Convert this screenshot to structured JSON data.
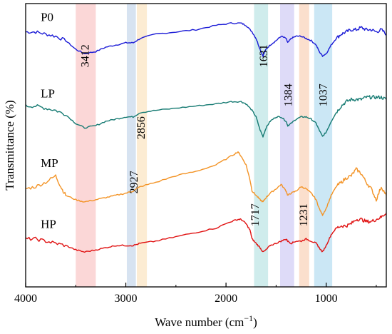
{
  "chart_data": {
    "type": "line",
    "xlabel": "Wave number (cm",
    "xlabel_sup": "−1",
    "xlabel_close": ")",
    "ylabel": "Transmittance (%)",
    "xlim": [
      4000,
      400
    ],
    "x_ticks": [
      4000,
      3000,
      2000,
      1000
    ],
    "y_ticks_shown": false,
    "grid": false,
    "legend": "none (series labelled inline)",
    "bands": [
      {
        "x_from": 3500,
        "x_to": 3300,
        "color": "#f9c9c9"
      },
      {
        "x_from": 2990,
        "x_to": 2900,
        "color": "#c9d9ec"
      },
      {
        "x_from": 2890,
        "x_to": 2790,
        "color": "#fbe6c4"
      },
      {
        "x_from": 1720,
        "x_to": 1580,
        "color": "#bfe6e6"
      },
      {
        "x_from": 1460,
        "x_to": 1320,
        "color": "#d3cff5"
      },
      {
        "x_from": 1270,
        "x_to": 1170,
        "color": "#fad4bc"
      },
      {
        "x_from": 1120,
        "x_to": 940,
        "color": "#b9dff2"
      }
    ],
    "peak_labels": [
      {
        "text": "3412",
        "x": 3412,
        "y": 70
      },
      {
        "text": "2927",
        "x": 2927,
        "y": 12
      },
      {
        "text": "2856",
        "x": 2856,
        "y": 37
      },
      {
        "text": "1631",
        "x": 1631,
        "y": 70
      },
      {
        "text": "1384",
        "x": 1384,
        "y": 52
      },
      {
        "text": "1037",
        "x": 1037,
        "y": 52
      },
      {
        "text": "1717",
        "x": 1717,
        "y": -3
      },
      {
        "text": "1231",
        "x": 1231,
        "y": -3
      }
    ],
    "y_range": [
      -36,
      94
    ],
    "series": [
      {
        "name": "P0",
        "color": "#1a1ad6",
        "label_x": 3850,
        "label_y": 86,
        "x": [
          4000,
          3900,
          3800,
          3700,
          3600,
          3500,
          3412,
          3300,
          3200,
          3100,
          3000,
          2927,
          2856,
          2700,
          2500,
          2300,
          2100,
          1950,
          1850,
          1800,
          1740,
          1700,
          1660,
          1631,
          1600,
          1560,
          1500,
          1450,
          1400,
          1384,
          1350,
          1300,
          1250,
          1200,
          1150,
          1100,
          1070,
          1037,
          1000,
          950,
          900,
          850,
          800,
          750,
          700,
          650,
          600,
          550,
          500,
          450,
          400
        ],
        "y": [
          81,
          81,
          80,
          79,
          77,
          73,
          71,
          72,
          74,
          75,
          76,
          76,
          78,
          80,
          81,
          82,
          84,
          85,
          85,
          84,
          81,
          78,
          73,
          70,
          73,
          75,
          77,
          79,
          78,
          76,
          78,
          79,
          79,
          78,
          77,
          75,
          72,
          70,
          71,
          75,
          78,
          80,
          81,
          82,
          82,
          83,
          82,
          82,
          81,
          82,
          80
        ]
      },
      {
        "name": "LP",
        "color": "#157a72",
        "label_x": 3850,
        "label_y": 51,
        "x": [
          4000,
          3900,
          3800,
          3700,
          3600,
          3500,
          3412,
          3300,
          3200,
          3100,
          3000,
          2927,
          2856,
          2700,
          2500,
          2300,
          2100,
          1950,
          1850,
          1800,
          1740,
          1700,
          1660,
          1631,
          1600,
          1560,
          1500,
          1450,
          1400,
          1384,
          1350,
          1300,
          1250,
          1200,
          1150,
          1100,
          1070,
          1037,
          1000,
          950,
          900,
          850,
          800,
          750,
          700,
          650,
          600,
          550,
          500,
          450,
          400
        ],
        "y": [
          47,
          47,
          46,
          45,
          43,
          39,
          37,
          38,
          40,
          41,
          42,
          42,
          44,
          45,
          46,
          47,
          48,
          49,
          49,
          48,
          45,
          42,
          36,
          33,
          37,
          40,
          42,
          42,
          40,
          38,
          39,
          41,
          42,
          42,
          41,
          39,
          36,
          33,
          35,
          40,
          44,
          47,
          49,
          50,
          50,
          50,
          51,
          51,
          51,
          51,
          50
        ]
      },
      {
        "name": "MP",
        "color": "#f39325",
        "label_x": 3850,
        "label_y": 19,
        "x": [
          4000,
          3900,
          3800,
          3700,
          3650,
          3600,
          3500,
          3412,
          3300,
          3200,
          3100,
          3000,
          2927,
          2856,
          2700,
          2500,
          2300,
          2100,
          1950,
          1880,
          1850,
          1800,
          1760,
          1740,
          1700,
          1660,
          1631,
          1600,
          1560,
          1500,
          1450,
          1400,
          1384,
          1350,
          1300,
          1250,
          1200,
          1150,
          1100,
          1070,
          1037,
          1000,
          950,
          900,
          850,
          800,
          750,
          700,
          650,
          600,
          550,
          500,
          450,
          400
        ],
        "y": [
          9,
          10,
          12,
          15,
          10,
          6,
          4,
          3,
          4,
          5,
          6,
          7,
          8,
          10,
          12,
          15,
          17,
          20,
          24,
          26,
          24,
          20,
          13,
          8,
          6,
          4,
          3,
          5,
          7,
          9,
          11,
          8,
          6,
          7,
          8,
          10,
          9,
          7,
          4,
          0,
          -3,
          0,
          6,
          10,
          12,
          14,
          15,
          18,
          16,
          12,
          9,
          4,
          10,
          6
        ]
      },
      {
        "name": "HP",
        "color": "#e01010",
        "label_x": 3850,
        "label_y": -9,
        "x": [
          4000,
          3900,
          3800,
          3700,
          3600,
          3500,
          3412,
          3300,
          3200,
          3100,
          3000,
          2927,
          2856,
          2700,
          2500,
          2300,
          2100,
          1950,
          1880,
          1850,
          1800,
          1760,
          1740,
          1700,
          1660,
          1631,
          1600,
          1560,
          1500,
          1450,
          1400,
          1384,
          1350,
          1300,
          1250,
          1200,
          1150,
          1100,
          1070,
          1037,
          1000,
          950,
          900,
          850,
          800,
          750,
          700,
          650,
          600,
          550,
          500,
          450,
          400
        ],
        "y": [
          -14,
          -14,
          -15,
          -16,
          -17,
          -19,
          -20,
          -19,
          -18,
          -17,
          -17,
          -17,
          -16,
          -15,
          -13,
          -11,
          -9,
          -6,
          -5,
          -5,
          -7,
          -10,
          -14,
          -16,
          -18,
          -20,
          -19,
          -17,
          -16,
          -15,
          -14,
          -15,
          -16,
          -15,
          -15,
          -14,
          -15,
          -16,
          -18,
          -20,
          -17,
          -12,
          -9,
          -8,
          -8,
          -7,
          -5,
          -5,
          -6,
          -6,
          -5,
          -4,
          -2
        ]
      }
    ]
  }
}
